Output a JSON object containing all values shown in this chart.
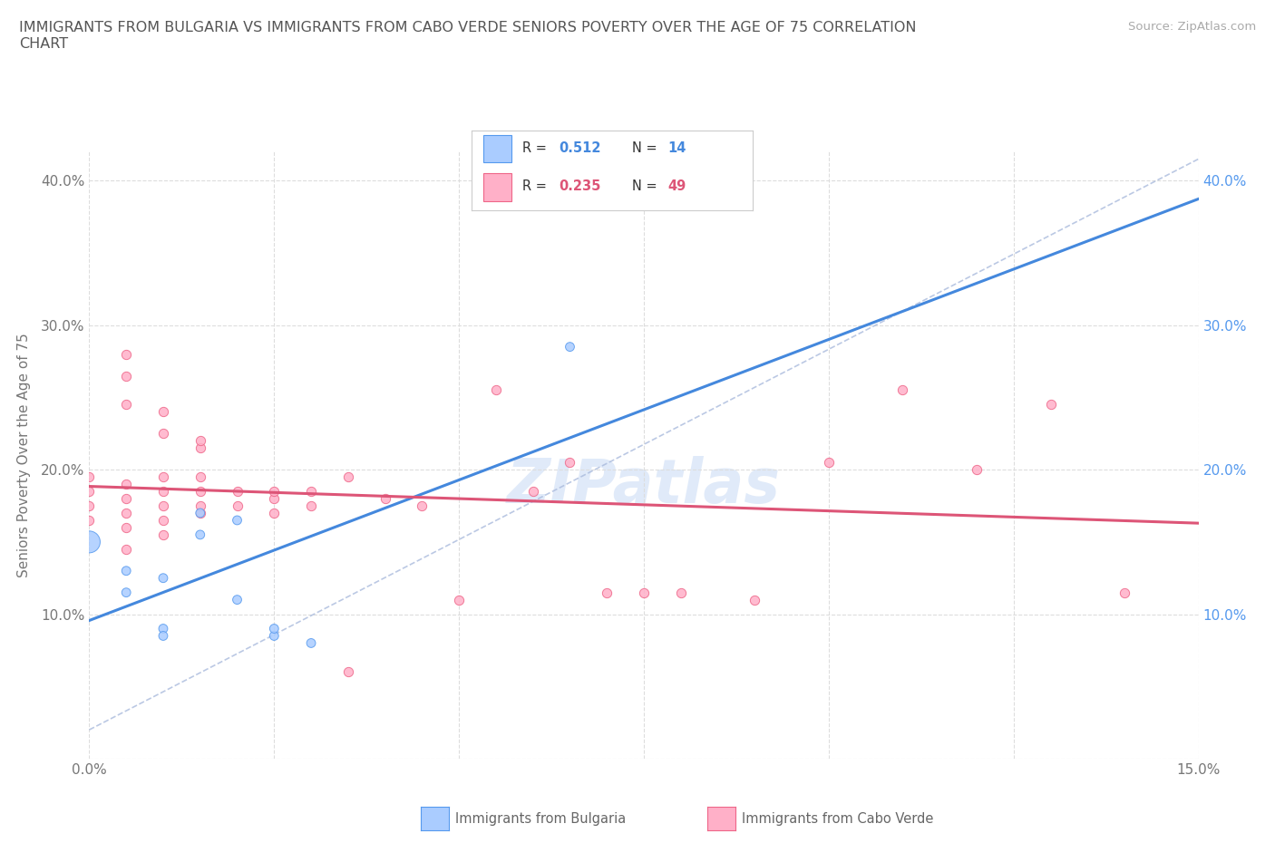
{
  "title": "IMMIGRANTS FROM BULGARIA VS IMMIGRANTS FROM CABO VERDE SENIORS POVERTY OVER THE AGE OF 75 CORRELATION\nCHART",
  "source": "Source: ZipAtlas.com",
  "ylabel": "Seniors Poverty Over the Age of 75",
  "xlim": [
    0.0,
    0.15
  ],
  "ylim": [
    0.0,
    0.42
  ],
  "xticks": [
    0.0,
    0.025,
    0.05,
    0.075,
    0.1,
    0.125,
    0.15
  ],
  "xtick_labels": [
    "0.0%",
    "",
    "",
    "",
    "",
    "",
    "15.0%"
  ],
  "yticks": [
    0.0,
    0.1,
    0.2,
    0.3,
    0.4
  ],
  "ytick_labels_left": [
    "",
    "10.0%",
    "20.0%",
    "30.0%",
    "40.0%"
  ],
  "ytick_labels_right": [
    "",
    "10.0%",
    "20.0%",
    "30.0%",
    "40.0%"
  ],
  "bulgaria_color": "#aaccff",
  "cabo_verde_color": "#ffb0c8",
  "bulgaria_edge_color": "#5599ee",
  "cabo_verde_edge_color": "#ee6688",
  "bulgaria_line_color": "#4488dd",
  "cabo_verde_line_color": "#dd5577",
  "diag_line_color": "#aabbdd",
  "right_axis_color": "#5599ee",
  "R_bulgaria": 0.512,
  "N_bulgaria": 14,
  "R_cabo_verde": 0.235,
  "N_cabo_verde": 49,
  "bulgaria_x": [
    0.0,
    0.005,
    0.005,
    0.01,
    0.01,
    0.01,
    0.015,
    0.015,
    0.02,
    0.02,
    0.025,
    0.025,
    0.03,
    0.065
  ],
  "bulgaria_y": [
    0.15,
    0.13,
    0.115,
    0.125,
    0.09,
    0.085,
    0.17,
    0.155,
    0.165,
    0.11,
    0.085,
    0.09,
    0.08,
    0.285
  ],
  "bulgaria_size_big": 300,
  "bulgaria_size_small": 50,
  "bulgaria_big_index": 0,
  "cabo_verde_x": [
    0.0,
    0.0,
    0.0,
    0.0,
    0.005,
    0.005,
    0.005,
    0.005,
    0.005,
    0.005,
    0.005,
    0.005,
    0.01,
    0.01,
    0.01,
    0.01,
    0.01,
    0.01,
    0.01,
    0.015,
    0.015,
    0.015,
    0.015,
    0.015,
    0.015,
    0.02,
    0.02,
    0.025,
    0.025,
    0.025,
    0.03,
    0.03,
    0.035,
    0.035,
    0.04,
    0.045,
    0.05,
    0.055,
    0.06,
    0.065,
    0.07,
    0.075,
    0.08,
    0.09,
    0.1,
    0.11,
    0.12,
    0.13,
    0.14
  ],
  "cabo_verde_y": [
    0.165,
    0.175,
    0.185,
    0.195,
    0.145,
    0.16,
    0.17,
    0.18,
    0.19,
    0.245,
    0.265,
    0.28,
    0.155,
    0.165,
    0.175,
    0.185,
    0.195,
    0.225,
    0.24,
    0.17,
    0.175,
    0.185,
    0.195,
    0.215,
    0.22,
    0.175,
    0.185,
    0.17,
    0.18,
    0.185,
    0.185,
    0.175,
    0.195,
    0.06,
    0.18,
    0.175,
    0.11,
    0.255,
    0.185,
    0.205,
    0.115,
    0.115,
    0.115,
    0.11,
    0.205,
    0.255,
    0.2,
    0.245,
    0.115
  ],
  "watermark_text": "ZIPatlas",
  "bg_color": "#ffffff",
  "grid_color": "#dddddd",
  "grid_style": "--"
}
